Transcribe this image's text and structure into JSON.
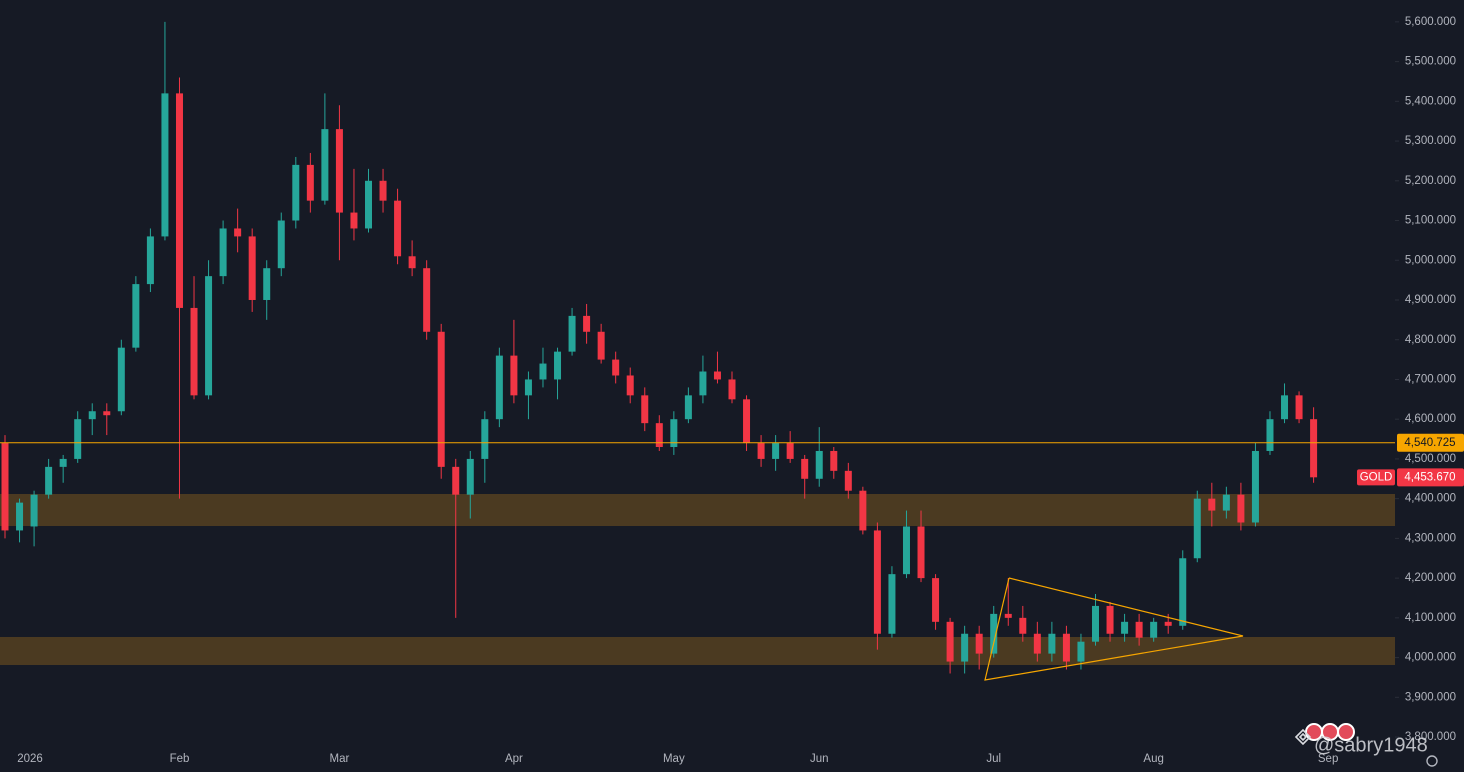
{
  "chart_data": {
    "type": "candlestick",
    "symbol": "GOLD",
    "watermark": "@sabry1948",
    "categories": [
      null,
      null,
      "2026",
      null,
      null,
      null,
      null,
      null,
      null,
      null,
      null,
      null,
      "Feb",
      null,
      null,
      null,
      null,
      null,
      null,
      null,
      null,
      null,
      null,
      "Mar",
      null,
      null,
      null,
      null,
      null,
      null,
      null,
      null,
      null,
      null,
      null,
      "Apr",
      null,
      null,
      null,
      null,
      null,
      null,
      null,
      null,
      null,
      null,
      "May",
      null,
      null,
      null,
      null,
      null,
      null,
      null,
      null,
      null,
      "Jun",
      null,
      null,
      null,
      null,
      null,
      null,
      null,
      null,
      null,
      null,
      null,
      "Jul",
      null,
      null,
      null,
      null,
      null,
      null,
      null,
      null,
      null,
      null,
      "Aug",
      null,
      null,
      null,
      null,
      null,
      null,
      null,
      null,
      null,
      null,
      null,
      "Sep"
    ],
    "open": [
      4540,
      4320,
      4330,
      4410,
      4480,
      4500,
      4600,
      4620,
      4620,
      4780,
      4940,
      5060,
      5420,
      4880,
      4660,
      4960,
      5080,
      5060,
      4900,
      4980,
      5100,
      5240,
      5150,
      5330,
      5120,
      5080,
      5200,
      5150,
      5010,
      4980,
      4820,
      4480,
      4410,
      4500,
      4600,
      4760,
      4660,
      4700,
      4700,
      4770,
      4860,
      4820,
      4750,
      4710,
      4660,
      4590,
      4530,
      4600,
      4660,
      4720,
      4700,
      4650,
      4540,
      4500,
      4540,
      4500,
      4450,
      4520,
      4470,
      4420,
      4320,
      4060,
      4210,
      4330,
      4200,
      4090,
      3990,
      4060,
      4010,
      4110,
      4100,
      4060,
      4010,
      4060,
      3990,
      4040,
      4130,
      4060,
      4090,
      4050,
      4090,
      4080,
      4250,
      4400,
      4370,
      4410,
      4340,
      4520,
      4600,
      4660,
      4600,
      null
    ],
    "high": [
      4560,
      4400,
      4420,
      4500,
      4510,
      4620,
      4640,
      4640,
      4800,
      4960,
      5080,
      5600,
      5460,
      4960,
      5000,
      5100,
      5130,
      5080,
      5000,
      5120,
      5260,
      5270,
      5420,
      5390,
      5230,
      5230,
      5230,
      5180,
      5050,
      5000,
      4840,
      4500,
      4520,
      4620,
      4780,
      4850,
      4720,
      4780,
      4780,
      4880,
      4890,
      4840,
      4770,
      4730,
      4680,
      4610,
      4620,
      4680,
      4760,
      4770,
      4720,
      4660,
      4560,
      4560,
      4570,
      4510,
      4580,
      4530,
      4490,
      4430,
      4340,
      4230,
      4370,
      4370,
      4210,
      4100,
      4080,
      4080,
      4130,
      4200,
      4130,
      4090,
      4090,
      4080,
      4060,
      4160,
      4140,
      4110,
      4110,
      4100,
      4110,
      4270,
      4420,
      4440,
      4430,
      4440,
      4540,
      4620,
      4690,
      4670,
      4630,
      null
    ],
    "low": [
      4300,
      4290,
      4280,
      4400,
      4440,
      4490,
      4560,
      4560,
      4610,
      4770,
      4920,
      5050,
      4400,
      4650,
      4650,
      4940,
      5020,
      4870,
      4850,
      4960,
      5080,
      5120,
      5140,
      5000,
      5050,
      5070,
      5120,
      4990,
      4960,
      4800,
      4450,
      4100,
      4350,
      4440,
      4580,
      4640,
      4600,
      4680,
      4650,
      4760,
      4790,
      4740,
      4690,
      4640,
      4570,
      4520,
      4510,
      4590,
      4640,
      4690,
      4640,
      4520,
      4480,
      4470,
      4490,
      4400,
      4430,
      4450,
      4400,
      4310,
      4020,
      4050,
      4200,
      4190,
      4070,
      3960,
      3960,
      3970,
      4000,
      4080,
      4040,
      3990,
      3990,
      3970,
      3970,
      4030,
      4040,
      4040,
      4030,
      4040,
      4060,
      4070,
      4240,
      4330,
      4350,
      4320,
      4330,
      4510,
      4590,
      4590,
      4440,
      null
    ],
    "close": [
      4320,
      4390,
      4410,
      4480,
      4500,
      4600,
      4620,
      4610,
      4780,
      4940,
      5060,
      5420,
      4880,
      4660,
      4960,
      5080,
      5060,
      4900,
      4980,
      5100,
      5240,
      5150,
      5330,
      5120,
      5080,
      5200,
      5150,
      5010,
      4980,
      4820,
      4480,
      4410,
      4500,
      4600,
      4760,
      4660,
      4700,
      4740,
      4770,
      4860,
      4820,
      4750,
      4710,
      4660,
      4590,
      4530,
      4600,
      4660,
      4720,
      4700,
      4650,
      4540,
      4500,
      4540,
      4500,
      4450,
      4520,
      4470,
      4420,
      4320,
      4060,
      4210,
      4330,
      4200,
      4090,
      3990,
      4060,
      4010,
      4110,
      4100,
      4060,
      4010,
      4060,
      3990,
      4040,
      4130,
      4060,
      4090,
      4050,
      4090,
      4080,
      4250,
      4400,
      4370,
      4410,
      4340,
      4520,
      4600,
      4660,
      4600,
      4453.67,
      null
    ],
    "up_color": "#26a69a",
    "down_color": "#f23645",
    "ylim": [
      3780,
      5655
    ],
    "yticks": [
      {
        "value": 3800,
        "label": "3,800.000"
      },
      {
        "value": 3900,
        "label": "3,900.000"
      },
      {
        "value": 4000,
        "label": "4,000.000"
      },
      {
        "value": 4100,
        "label": "4,100.000"
      },
      {
        "value": 4200,
        "label": "4,200.000"
      },
      {
        "value": 4300,
        "label": "4,300.000"
      },
      {
        "value": 4400,
        "label": "4,400.000"
      },
      {
        "value": 4500,
        "label": "4,500.000"
      },
      {
        "value": 4600,
        "label": "4,600.000"
      },
      {
        "value": 4700,
        "label": "4,700.000"
      },
      {
        "value": 4800,
        "label": "4,800.000"
      },
      {
        "value": 4900,
        "label": "4,900.000"
      },
      {
        "value": 5000,
        "label": "5,000.000"
      },
      {
        "value": 5100,
        "label": "5,100.000"
      },
      {
        "value": 5200,
        "label": "5,200.000"
      },
      {
        "value": 5300,
        "label": "5,300.000"
      },
      {
        "value": 5400,
        "label": "5,400.000"
      },
      {
        "value": 5500,
        "label": "5,500.000"
      },
      {
        "value": 5600,
        "label": "5,600.000"
      }
    ],
    "price_line": {
      "value": 4540.725,
      "label": "4,540.725",
      "color": "#f7a600"
    },
    "last_price": {
      "value": 4453.67,
      "label": "4,453.670",
      "color": "#f23645"
    }
  }
}
